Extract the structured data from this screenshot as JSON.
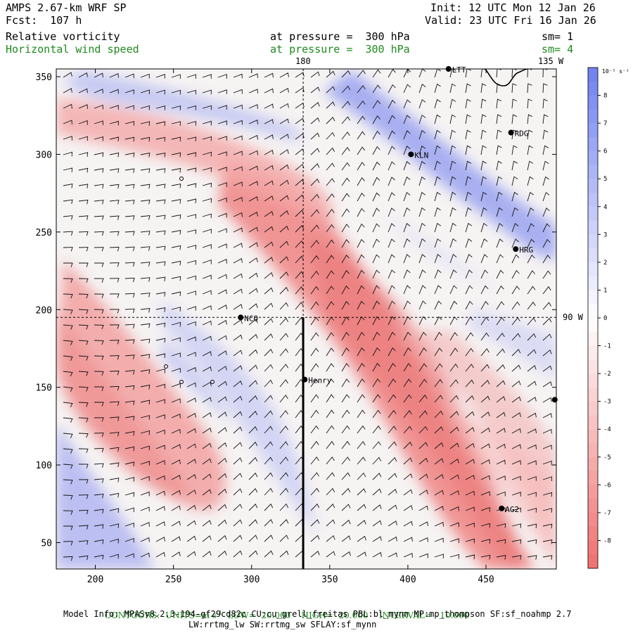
{
  "header": {
    "model": "AMPS 2.67-km WRF SP",
    "fcst": "Fcst:  107 h",
    "init": "Init: 12 UTC Mon 12 Jan 26",
    "valid": "Valid: 23 UTC Fri 16 Jan 26",
    "field1": "Relative vorticity",
    "field1_level": "at pressure =  300 hPa",
    "field1_sm": "sm= 1",
    "field2": "Horizontal wind speed",
    "field2_level": "at pressure =  300 hPa",
    "field2_sm": "sm= 4"
  },
  "map_labels": {
    "lon_180": "180",
    "lon_135w": "135 W",
    "lon_90w": "90 W"
  },
  "colorbar": {
    "units": "10⁻⁵ s⁻¹",
    "ticks": [
      "8",
      "7",
      "6",
      "5",
      "4",
      "3",
      "2",
      "1",
      "0",
      "-1",
      "-2",
      "-3",
      "-4",
      "-5",
      "-6",
      "-7",
      "-8"
    ],
    "positive_color": "#6f7ff0",
    "negative_color": "#f06f6f"
  },
  "stations": [
    {
      "name": "LTT",
      "x": 426,
      "y": 355
    },
    {
      "name": "RDG",
      "x": 466,
      "y": 314
    },
    {
      "name": "KLN",
      "x": 402,
      "y": 300
    },
    {
      "name": "HRG",
      "x": 469,
      "y": 239
    },
    {
      "name": "NCO",
      "x": 293,
      "y": 195
    },
    {
      "name": "Henry",
      "x": 334,
      "y": 155
    },
    {
      "name": "AG2",
      "x": 460,
      "y": 72
    },
    {
      "name": "",
      "x": 494,
      "y": 142
    }
  ],
  "footer": {
    "contours_label": "CONTOURS:  UNITS=m s",
    "contours_sup": "-1",
    "low": "LOW=  20.000",
    "high": "HIGH=  20.000",
    "interval": "INTERVAL=   10.000",
    "model_info": "Model Info: MPASv8.2.3-194-gf29cd82c CU:cu_grell_freitas PBL:bl_mynn MP:mp_thompson SF:sf_noahmp 2.7",
    "model_info2": "LW:rrtmg_lw SW:rrtmg_sw SFLAY:sf_mynn"
  },
  "chart_data": {
    "type": "heatmap",
    "xlim": [
      175,
      495
    ],
    "ylim": [
      33,
      355
    ],
    "xticks": [
      200,
      250,
      300,
      350,
      400,
      450
    ],
    "yticks": [
      50,
      100,
      150,
      200,
      250,
      300,
      350
    ],
    "colorbar_range": [
      -9,
      9
    ],
    "grid_lines": {
      "vertical_x": 333,
      "horizontal_y": 195
    },
    "cross_section_line": {
      "x": 333,
      "y_start": 33,
      "y_end": 195
    }
  }
}
